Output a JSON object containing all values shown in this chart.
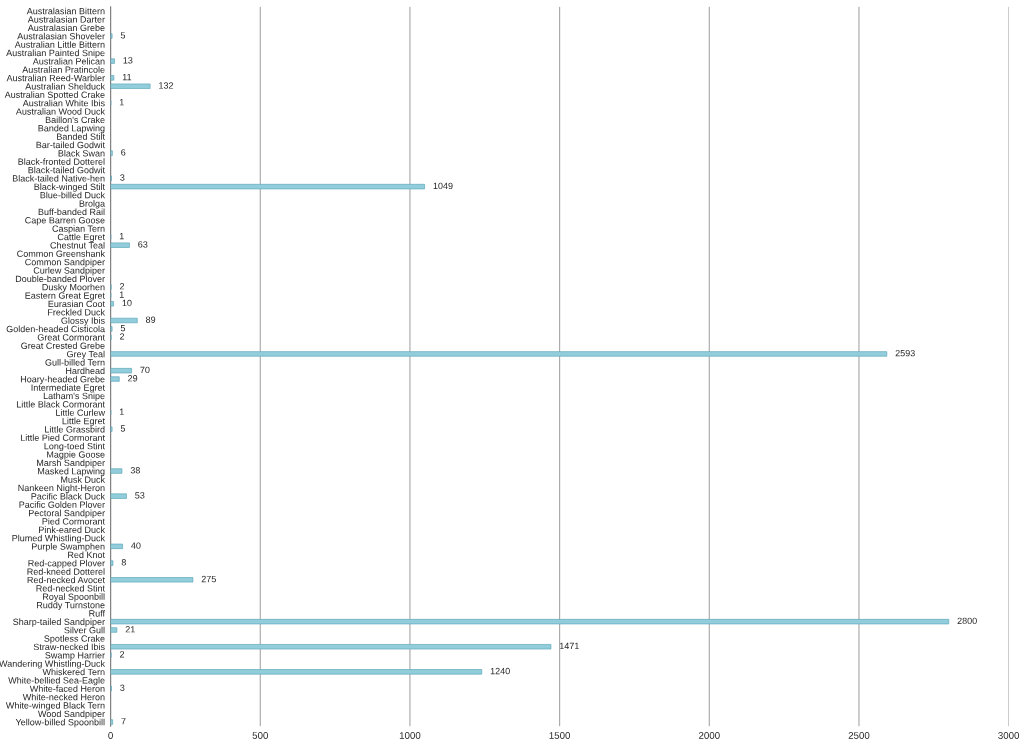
{
  "chart_data": {
    "type": "bar",
    "orientation": "horizontal",
    "categories": [
      "Australasian Bittern",
      "Australasian Darter",
      "Australasian Grebe",
      "Australasian Shoveler",
      "Australian Little Bittern",
      "Australian Painted Snipe",
      "Australian Pelican",
      "Australian Pratincole",
      "Australian Reed-Warbler",
      "Australian Shelduck",
      "Australian Spotted Crake",
      "Australian White Ibis",
      "Australian Wood Duck",
      "Baillon's Crake",
      "Banded Lapwing",
      "Banded Stilt",
      "Bar-tailed Godwit",
      "Black Swan",
      "Black-fronted Dotterel",
      "Black-tailed Godwit",
      "Black-tailed Native-hen",
      "Black-winged Stilt",
      "Blue-billed Duck",
      "Brolga",
      "Buff-banded Rail",
      "Cape Barren Goose",
      "Caspian Tern",
      "Cattle Egret",
      "Chestnut Teal",
      "Common Greenshank",
      "Common Sandpiper",
      "Curlew Sandpiper",
      "Double-banded Plover",
      "Dusky Moorhen",
      "Eastern Great Egret",
      "Eurasian Coot",
      "Freckled Duck",
      "Glossy Ibis",
      "Golden-headed Cisticola",
      "Great Cormorant",
      "Great Crested Grebe",
      "Grey Teal",
      "Gull-billed Tern",
      "Hardhead",
      "Hoary-headed Grebe",
      "Intermediate Egret",
      "Latham's Snipe",
      "Little Black Cormorant",
      "Little Curlew",
      "Little Egret",
      "Little Grassbird",
      "Little Pied Cormorant",
      "Long-toed Stint",
      "Magpie Goose",
      "Marsh Sandpiper",
      "Masked Lapwing",
      "Musk Duck",
      "Nankeen Night-Heron",
      "Pacific Black Duck",
      "Pacific Golden Plover",
      "Pectoral Sandpiper",
      "Pied Cormorant",
      "Pink-eared Duck",
      "Plumed Whistling-Duck",
      "Purple Swamphen",
      "Red Knot",
      "Red-capped Plover",
      "Red-kneed Dotterel",
      "Red-necked Avocet",
      "Red-necked Stint",
      "Royal Spoonbill",
      "Ruddy Turnstone",
      "Ruff",
      "Sharp-tailed Sandpiper",
      "Silver Gull",
      "Spotless Crake",
      "Straw-necked Ibis",
      "Swamp Harrier",
      "Wandering Whistling-Duck",
      "Whiskered Tern",
      "White-bellied Sea-Eagle",
      "White-faced Heron",
      "White-necked Heron",
      "White-winged Black Tern",
      "Wood Sandpiper",
      "Yellow-billed Spoonbill"
    ],
    "values": [
      null,
      null,
      null,
      5,
      null,
      null,
      13,
      null,
      11,
      132,
      null,
      1,
      null,
      null,
      null,
      null,
      null,
      6,
      null,
      null,
      3,
      1049,
      null,
      null,
      null,
      null,
      null,
      1,
      63,
      null,
      null,
      null,
      null,
      2,
      1,
      10,
      null,
      89,
      5,
      2,
      null,
      2593,
      null,
      70,
      29,
      null,
      null,
      null,
      1,
      null,
      5,
      null,
      null,
      null,
      null,
      38,
      null,
      null,
      53,
      null,
      null,
      null,
      null,
      null,
      40,
      null,
      8,
      null,
      275,
      null,
      null,
      null,
      null,
      2800,
      21,
      null,
      1471,
      2,
      null,
      1240,
      null,
      3,
      null,
      null,
      null,
      7
    ],
    "color": "#92cddc",
    "data_labels": true,
    "xlim": [
      0,
      3000
    ],
    "xticks": [
      0,
      500,
      1000,
      1500,
      2000,
      2500,
      3000
    ],
    "grid": "x"
  }
}
